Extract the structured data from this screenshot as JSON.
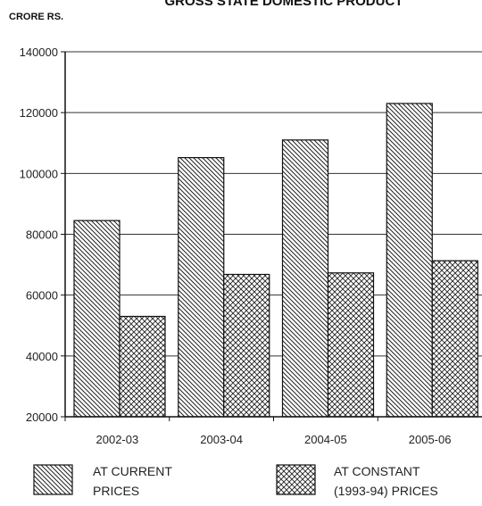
{
  "chart_data": {
    "type": "bar",
    "title": "GROSS STATE DOMESTIC PRODUCT",
    "unit_label": "CRORE RS.",
    "categories": [
      "2002-03",
      "2003-04",
      "2004-05",
      "2005-06"
    ],
    "series": [
      {
        "name": "AT CURRENT PRICES",
        "legend_lines": [
          "AT CURRENT",
          "PRICES"
        ],
        "pattern": "diagonal-hatch",
        "values": [
          84500,
          105200,
          111000,
          123000
        ]
      },
      {
        "name": "AT CONSTANT (1993-94) PRICES",
        "legend_lines": [
          "AT CONSTANT",
          "(1993-94) PRICES"
        ],
        "pattern": "crosshatch",
        "values": [
          53000,
          66800,
          67300,
          71300
        ]
      }
    ],
    "ylim": [
      20000,
      140000
    ],
    "yticks": [
      20000,
      40000,
      60000,
      80000,
      100000,
      120000,
      140000
    ],
    "grid": true,
    "legend_position": "bottom"
  }
}
